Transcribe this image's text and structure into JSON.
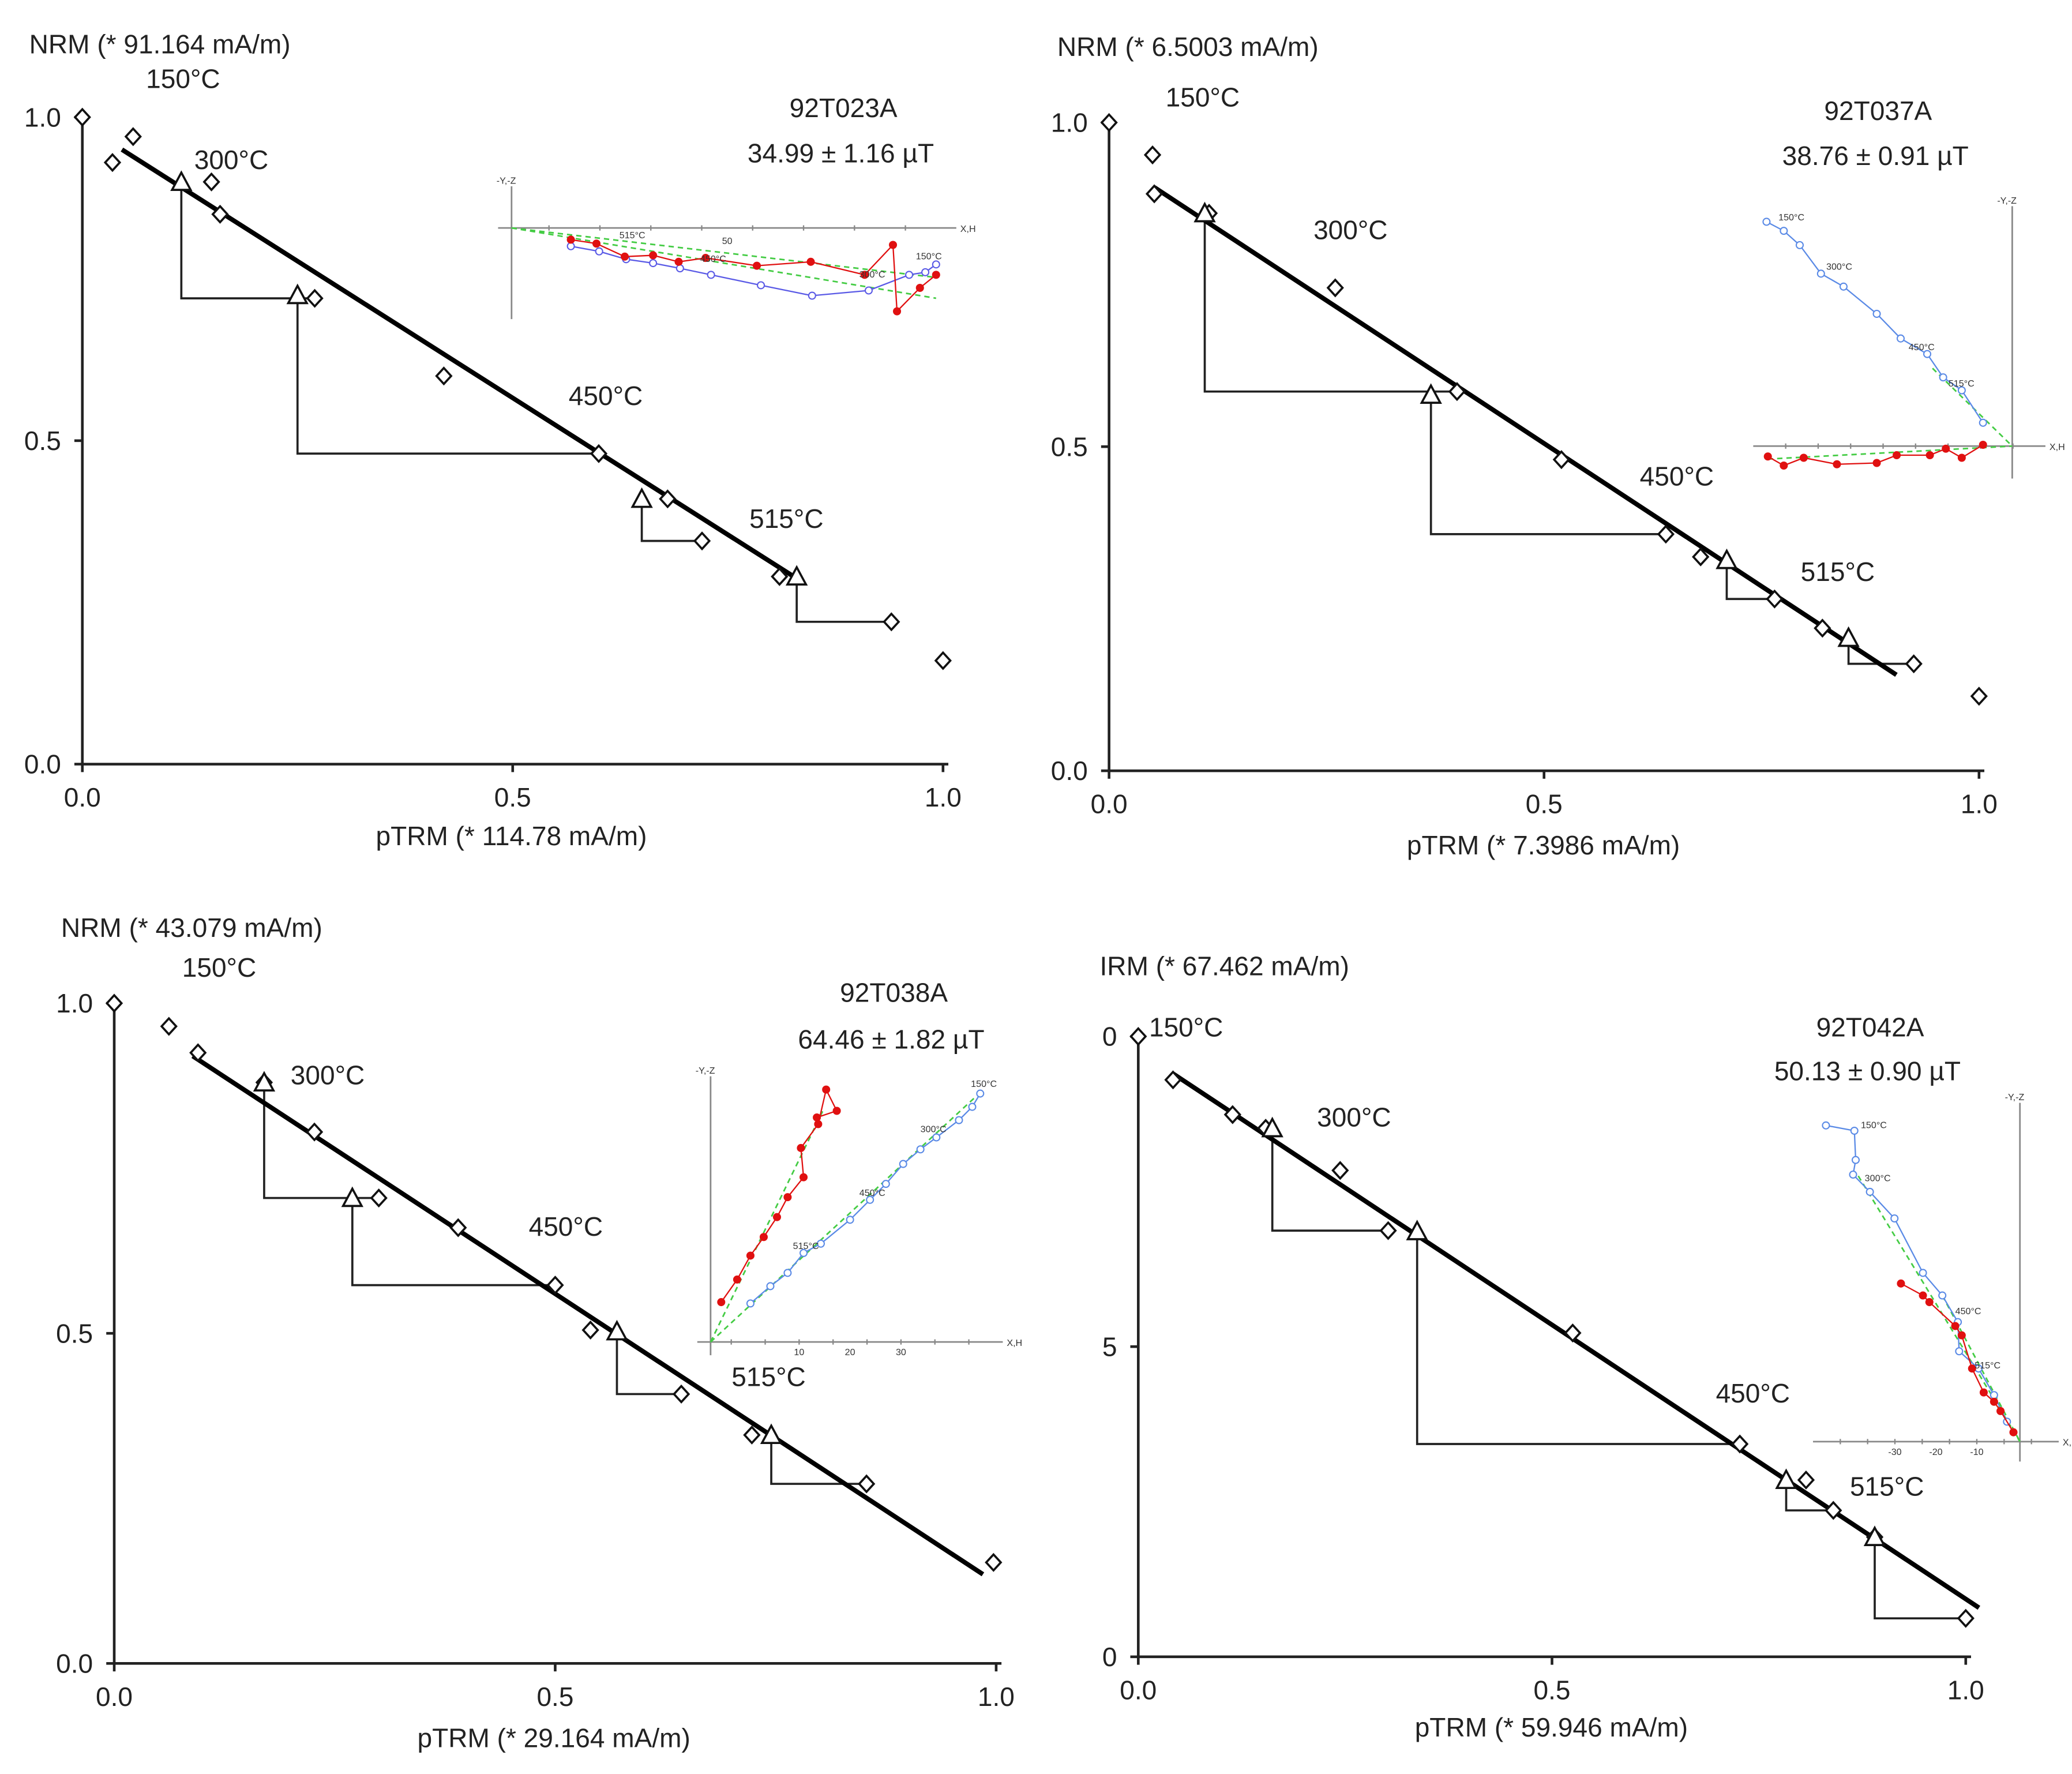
{
  "chart_data": [
    {
      "type": "scatter",
      "title": "92T023A",
      "result": "34.99 ± 1.16 µT",
      "ylabel": "NRM (* 91.164 mA/m)",
      "xlabel": "pTRM (* 114.78 mA/m)",
      "xlim": [
        0,
        1
      ],
      "ylim": [
        0,
        1
      ],
      "xticks": [
        "0.0",
        "0.5",
        "1.0"
      ],
      "yticks": [
        "0.0",
        "0.5",
        "1.0"
      ],
      "points": [
        [
          0,
          1.0
        ],
        [
          0.035,
          0.93
        ],
        [
          0.059,
          0.97
        ],
        [
          0.15,
          0.9
        ],
        [
          0.16,
          0.85
        ],
        [
          0.27,
          0.72
        ],
        [
          0.42,
          0.6
        ],
        [
          0.6,
          0.48
        ],
        [
          0.68,
          0.41
        ],
        [
          0.72,
          0.345
        ],
        [
          0.81,
          0.29
        ],
        [
          0.94,
          0.22
        ],
        [
          1.0,
          0.16
        ]
      ],
      "ptrm_checks": [
        [
          0.115,
          0.9
        ],
        [
          0.25,
          0.725
        ],
        [
          0.65,
          0.41
        ],
        [
          0.83,
          0.29
        ]
      ],
      "check_targets": [
        5,
        7,
        9,
        11
      ],
      "fit_line": [
        [
          0.046,
          0.95
        ],
        [
          0.83,
          0.287
        ]
      ],
      "annotations": [
        {
          "text": "150°C",
          "x": 0.074,
          "y": 1.045
        },
        {
          "text": "300°C",
          "x": 0.13,
          "y": 0.92
        },
        {
          "text": "450°C",
          "x": 0.565,
          "y": 0.555
        },
        {
          "text": "515°C",
          "x": 0.775,
          "y": 0.365
        }
      ],
      "inset": {
        "ulim": [
          -10,
          330
        ],
        "vlim": [
          -70,
          32
        ],
        "axis_labels": {
          "y": "-Y,-Z",
          "x": "X,H"
        },
        "tick_labels": [
          "50"
        ],
        "horizontal": [
          [
            44,
            -14
          ],
          [
            65,
            -18
          ],
          [
            85,
            -24
          ],
          [
            105,
            -27
          ],
          [
            125,
            -31
          ],
          [
            148,
            -36
          ],
          [
            185,
            -44
          ],
          [
            223,
            -52
          ],
          [
            265,
            -48
          ],
          [
            295,
            -36
          ],
          [
            307,
            -34
          ],
          [
            315,
            -28
          ]
        ],
        "vertical": [
          [
            44,
            -9
          ],
          [
            63,
            -12
          ],
          [
            84,
            -22
          ],
          [
            105,
            -21
          ],
          [
            124,
            -26
          ],
          [
            144,
            -23
          ],
          [
            182,
            -29
          ],
          [
            222,
            -26
          ],
          [
            262,
            -36
          ],
          [
            283,
            -13
          ],
          [
            286,
            -64
          ],
          [
            303,
            -46
          ],
          [
            315,
            -36
          ]
        ],
        "fits": [
          [
            [
              0,
              0
            ],
            [
              315,
              -54
            ]
          ],
          [
            [
              0,
              0
            ],
            [
              315,
              -38
            ]
          ]
        ],
        "labels": [
          {
            "text": "515°C",
            "u": 80,
            "v": -8
          },
          {
            "text": "450°C",
            "u": 140,
            "v": -26
          },
          {
            "text": "300°C",
            "u": 258,
            "v": -38
          },
          {
            "text": "150°C",
            "u": 300,
            "v": -24
          }
        ]
      },
      "colors": {
        "horizontal": "#5a5ae6",
        "vertical": "#e01010",
        "fit": "#44cc44"
      }
    },
    {
      "type": "scatter",
      "title": "92T037A",
      "result": "38.76 ± 0.91 µT",
      "ylabel": "NRM (* 6.5003 mA/m)",
      "xlabel": "pTRM (* 7.3986 mA/m)",
      "xlim": [
        0,
        1
      ],
      "ylim": [
        0,
        1
      ],
      "xticks": [
        "0.0",
        "0.5",
        "1.0"
      ],
      "yticks": [
        "0.0",
        "0.5",
        "1.0"
      ],
      "points": [
        [
          0,
          1.0
        ],
        [
          0.05,
          0.95
        ],
        [
          0.052,
          0.89
        ],
        [
          0.115,
          0.86
        ],
        [
          0.26,
          0.745
        ],
        [
          0.4,
          0.585
        ],
        [
          0.52,
          0.48
        ],
        [
          0.64,
          0.365
        ],
        [
          0.68,
          0.33
        ],
        [
          0.765,
          0.265
        ],
        [
          0.82,
          0.22
        ],
        [
          0.925,
          0.165
        ],
        [
          1.0,
          0.115
        ]
      ],
      "ptrm_checks": [
        [
          0.11,
          0.86
        ],
        [
          0.37,
          0.58
        ],
        [
          0.71,
          0.325
        ],
        [
          0.85,
          0.205
        ]
      ],
      "check_targets": [
        5,
        7,
        9,
        11
      ],
      "fit_line": [
        [
          0.052,
          0.9
        ],
        [
          0.905,
          0.148
        ]
      ],
      "annotations": [
        {
          "text": "150°C",
          "x": 0.065,
          "y": 1.025
        },
        {
          "text": "300°C",
          "x": 0.235,
          "y": 0.82
        },
        {
          "text": "450°C",
          "x": 0.61,
          "y": 0.44
        },
        {
          "text": "515°C",
          "x": 0.795,
          "y": 0.293
        }
      ],
      "inset": {
        "ulim": [
          -195,
          25
        ],
        "vlim": [
          -25,
          185
        ],
        "axis_labels": {
          "y": "-Y,-Z",
          "x": "X,H"
        },
        "tick_labels": [],
        "horizontal": [
          [
            -185,
            173
          ],
          [
            -172,
            166
          ],
          [
            -160,
            155
          ],
          [
            -144,
            133
          ],
          [
            -127,
            123
          ],
          [
            -102,
            102
          ],
          [
            -84,
            83
          ],
          [
            -64,
            71
          ],
          [
            -52,
            53
          ],
          [
            -38,
            43
          ],
          [
            -22,
            18
          ]
        ],
        "vertical": [
          [
            -184,
            -8
          ],
          [
            -172,
            -15
          ],
          [
            -157,
            -9
          ],
          [
            -132,
            -14
          ],
          [
            -102,
            -13
          ],
          [
            -87,
            -7
          ],
          [
            -62,
            -7
          ],
          [
            -50,
            -2
          ],
          [
            -38,
            -9
          ],
          [
            -22,
            1
          ]
        ],
        "fits": [
          [
            [
              -184,
              -10
            ],
            [
              0,
              0
            ]
          ],
          [
            [
              -60,
              60
            ],
            [
              0,
              0
            ]
          ]
        ],
        "labels": [
          {
            "text": "150°C",
            "u": -176,
            "v": 174
          },
          {
            "text": "300°C",
            "u": -140,
            "v": 136
          },
          {
            "text": "450°C",
            "u": -78,
            "v": 74
          },
          {
            "text": "515°C",
            "u": -48,
            "v": 46
          }
        ]
      },
      "colors": {
        "horizontal": "#5a8ae6",
        "vertical": "#e01010",
        "fit": "#44cc44"
      }
    },
    {
      "type": "scatter",
      "title": "92T038A",
      "result": "64.46 ± 1.82 µT",
      "ylabel": "NRM (* 43.079 mA/m)",
      "xlabel": "pTRM (* 29.164 mA/m)",
      "xlim": [
        0,
        1
      ],
      "ylim": [
        0,
        1
      ],
      "xticks": [
        "0.0",
        "0.5",
        "1.0"
      ],
      "yticks": [
        "0.0",
        "0.5",
        "1.0"
      ],
      "points": [
        [
          0,
          1.0
        ],
        [
          0.062,
          0.965
        ],
        [
          0.095,
          0.925
        ],
        [
          0.17,
          0.88
        ],
        [
          0.227,
          0.805
        ],
        [
          0.3,
          0.705
        ],
        [
          0.39,
          0.66
        ],
        [
          0.5,
          0.573
        ],
        [
          0.54,
          0.505
        ],
        [
          0.643,
          0.408
        ],
        [
          0.723,
          0.346
        ],
        [
          0.853,
          0.272
        ],
        [
          0.997,
          0.153
        ]
      ],
      "ptrm_checks": [
        [
          0.17,
          0.88
        ],
        [
          0.27,
          0.705
        ],
        [
          0.57,
          0.503
        ],
        [
          0.745,
          0.346
        ]
      ],
      "check_targets": [
        5,
        7,
        9,
        11
      ],
      "fit_line": [
        [
          0.089,
          0.92
        ],
        [
          0.985,
          0.135
        ]
      ],
      "annotations": [
        {
          "text": "150°C",
          "x": 0.077,
          "y": 1.04
        },
        {
          "text": "300°C",
          "x": 0.2,
          "y": 0.877
        },
        {
          "text": "450°C",
          "x": 0.47,
          "y": 0.648
        },
        {
          "text": "515°C",
          "x": 0.7,
          "y": 0.42
        }
      ],
      "inset": {
        "ulim": [
          -10,
          220
        ],
        "vlim": [
          -10,
          200
        ],
        "axis_labels": {
          "y": "-Y,-Z",
          "x": "X,H"
        },
        "tick_labels": [
          "10",
          "20",
          "30"
        ],
        "horizontal": [
          [
            30,
            29
          ],
          [
            45,
            42
          ],
          [
            58,
            52
          ],
          [
            70,
            67
          ],
          [
            83,
            74
          ],
          [
            105,
            92
          ],
          [
            120,
            107
          ],
          [
            132,
            119
          ],
          [
            145,
            134
          ],
          [
            158,
            145
          ],
          [
            170,
            154
          ],
          [
            187,
            167
          ],
          [
            197,
            177
          ],
          [
            203,
            187
          ]
        ],
        "vertical": [
          [
            8,
            30
          ],
          [
            20,
            47
          ],
          [
            30,
            65
          ],
          [
            40,
            79
          ],
          [
            50,
            94
          ],
          [
            58,
            109
          ],
          [
            70,
            124
          ],
          [
            68,
            146
          ],
          [
            81,
            164
          ],
          [
            87,
            190
          ],
          [
            95,
            174
          ],
          [
            80,
            169
          ]
        ],
        "fits": [
          [
            [
              0,
              0
            ],
            [
              85,
              175
            ]
          ],
          [
            [
              0,
              0
            ],
            [
              200,
              185
            ]
          ]
        ],
        "labels": [
          {
            "text": "150°C",
            "u": 196,
            "v": 192
          },
          {
            "text": "300°C",
            "u": 158,
            "v": 158
          },
          {
            "text": "450°C",
            "u": 112,
            "v": 110
          },
          {
            "text": "515°C",
            "u": 62,
            "v": 70
          }
        ]
      },
      "colors": {
        "horizontal": "#5a8ae6",
        "vertical": "#e01010",
        "fit": "#44cc44"
      }
    },
    {
      "type": "scatter",
      "title": "92T042A",
      "result": "50.13 ± 0.90 µT",
      "ylabel": "IRM (* 67.462 mA/m)",
      "xlabel": "pTRM (* 59.946 mA/m)",
      "xlim": [
        0,
        1
      ],
      "ylim": [
        0,
        1
      ],
      "xticks": [
        "0.0",
        "0.5",
        "1.0"
      ],
      "yticks": [
        "0",
        "5",
        "0"
      ],
      "points": [
        [
          0,
          1.0
        ],
        [
          0.042,
          0.93
        ],
        [
          0.114,
          0.874
        ],
        [
          0.154,
          0.852
        ],
        [
          0.244,
          0.784
        ],
        [
          0.302,
          0.687
        ],
        [
          0.525,
          0.522
        ],
        [
          0.727,
          0.343
        ],
        [
          0.807,
          0.285
        ],
        [
          0.84,
          0.236
        ],
        [
          0.89,
          0.193
        ],
        [
          1.0,
          0.062
        ]
      ],
      "ptrm_checks": [
        [
          0.162,
          0.852
        ],
        [
          0.337,
          0.686
        ],
        [
          0.783,
          0.285
        ],
        [
          0.89,
          0.193
        ]
      ],
      "check_targets": [
        5,
        7,
        9,
        11
      ],
      "fit_line": [
        [
          0.042,
          0.94
        ],
        [
          1.016,
          0.079
        ]
      ],
      "annotations": [
        {
          "text": "150°C",
          "x": 0.013,
          "y": 1.0
        },
        {
          "text": "300°C",
          "x": 0.216,
          "y": 0.855
        },
        {
          "text": "450°C",
          "x": 0.698,
          "y": 0.41
        },
        {
          "text": "515°C",
          "x": 0.86,
          "y": 0.26
        }
      ],
      "inset": {
        "ulim": [
          -160,
          30
        ],
        "vlim": [
          -15,
          255
        ],
        "axis_labels": {
          "y": "-Y,-Z",
          "x": "X,H"
        },
        "tick_labels": [
          "-30",
          "-20",
          "-10"
        ],
        "horizontal": [
          [
            -150,
            238
          ],
          [
            -128,
            234
          ],
          [
            -127,
            212
          ],
          [
            -129,
            201
          ],
          [
            -116,
            188
          ],
          [
            -97,
            168
          ],
          [
            -75,
            127
          ],
          [
            -60,
            110
          ],
          [
            -48,
            90
          ],
          [
            -47,
            68
          ],
          [
            -32,
            55
          ],
          [
            -20,
            35
          ],
          [
            -10,
            15
          ]
        ],
        "vertical": [
          [
            -92,
            119
          ],
          [
            -75,
            110
          ],
          [
            -70,
            105
          ],
          [
            -50,
            87
          ],
          [
            -45,
            80
          ],
          [
            -37,
            55
          ],
          [
            -28,
            37
          ],
          [
            -20,
            30
          ],
          [
            -15,
            23
          ],
          [
            -5,
            7
          ]
        ],
        "fits": [
          [
            [
              -125,
              200
            ],
            [
              0,
              0
            ]
          ],
          [
            [
              -60,
              110
            ],
            [
              0,
              0
            ]
          ]
        ],
        "labels": [
          {
            "text": "150°C",
            "u": -123,
            "v": 236
          },
          {
            "text": "300°C",
            "u": -120,
            "v": 196
          },
          {
            "text": "450°C",
            "u": -50,
            "v": 96
          },
          {
            "text": "515°C",
            "u": -35,
            "v": 55
          }
        ]
      },
      "colors": {
        "horizontal": "#5a8ae6",
        "vertical": "#e01010",
        "fit": "#44cc44"
      }
    }
  ]
}
